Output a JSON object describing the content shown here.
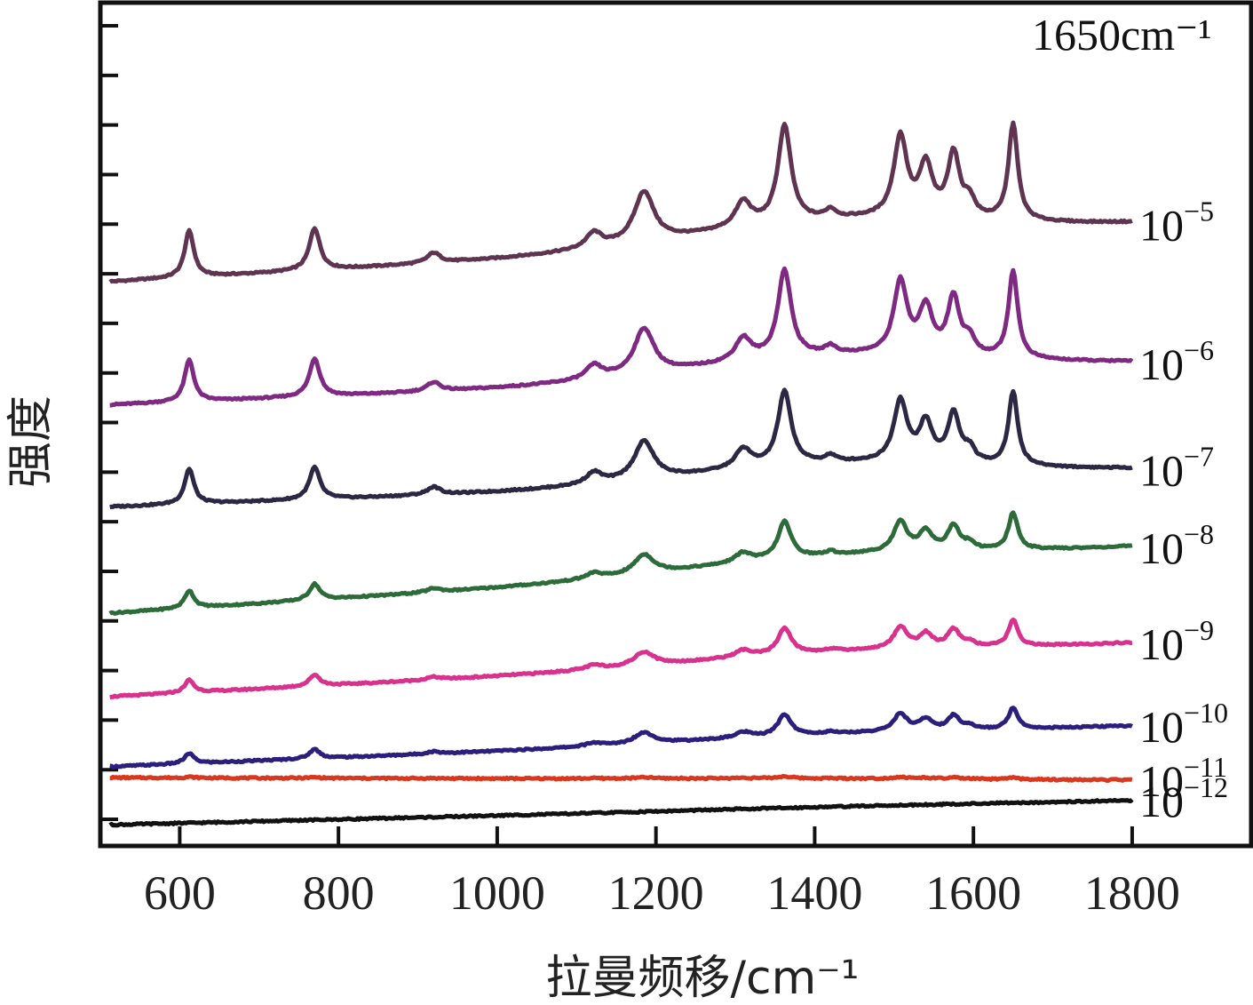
{
  "chart_data": {
    "type": "line",
    "xlabel": "拉曼频移/cm⁻¹",
    "ylabel": "强度",
    "xlim": [
      500,
      1950
    ],
    "ylim": [
      0,
      100
    ],
    "x_ticks": [
      600,
      800,
      1000,
      1200,
      1400,
      1600,
      1800
    ],
    "y_tick_count": 17,
    "grid": false,
    "peak_annotation": "1650cm⁻¹",
    "peak_positions": [
      612,
      770,
      920,
      1122,
      1185,
      1310,
      1362,
      1420,
      1508,
      1540,
      1575,
      1595,
      1650
    ],
    "series": [
      {
        "name": "10⁻⁵",
        "base": "10",
        "exponent": "−5",
        "color": "#5e3450",
        "start": 66.9,
        "end": 73.7,
        "scale": 1.0,
        "peak_scale": 1.0
      },
      {
        "name": "10⁻⁶",
        "base": "10",
        "exponent": "−6",
        "color": "#7e2a82",
        "start": 52.3,
        "end": 57.2,
        "scale": 0.96,
        "peak_scale": 0.9
      },
      {
        "name": "10⁻⁷",
        "base": "10",
        "exponent": "−7",
        "color": "#2c2844",
        "start": 40.2,
        "end": 44.6,
        "scale": 0.82,
        "peak_scale": 0.76
      },
      {
        "name": "10⁻⁸",
        "base": "10",
        "exponent": "−8",
        "color": "#2e6b3a",
        "start": 27.6,
        "end": 35.4,
        "scale": 0.54,
        "peak_scale": 0.38
      },
      {
        "name": "10⁻⁹",
        "base": "10",
        "exponent": "−9",
        "color": "#d8318e",
        "start": 17.7,
        "end": 24.0,
        "scale": 0.36,
        "peak_scale": 0.27
      },
      {
        "name": "10⁻¹⁰",
        "base": "10",
        "exponent": "−10",
        "color": "#2b1e7c",
        "start": 9.4,
        "end": 14.2,
        "scale": 0.2,
        "peak_scale": 0.22
      },
      {
        "name": "10⁻¹¹",
        "base": "10",
        "exponent": "−11",
        "color": "#d9381e",
        "start": 8.1,
        "end": 7.8,
        "scale": 0.05,
        "peak_scale": 0.02
      },
      {
        "name": "10⁻¹²",
        "base": "10",
        "exponent": "−12",
        "color": "#111111",
        "start": 2.5,
        "end": 5.4,
        "scale": 0.04,
        "peak_scale": 0.0
      }
    ]
  }
}
